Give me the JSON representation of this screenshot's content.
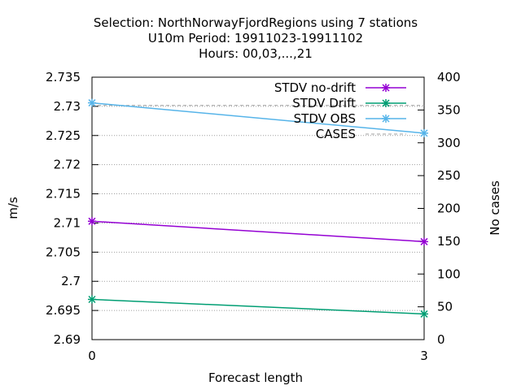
{
  "title_lines": [
    "Selection: NorthNorwayFjordRegions using     7 stations",
    "U10m   Period: 19911023-19911102",
    "Hours:  00,03,...,21"
  ],
  "colors": {
    "stdv_nodrift": "#9400d3",
    "stdv_drift": "#009e73",
    "stdv_obs": "#56b4e9",
    "cases": "#a0a0a0",
    "grid": "#a0a0a0"
  },
  "chart_data": {
    "type": "line",
    "xlabel": "Forecast length",
    "ylabel": "m/s",
    "y2label": "No cases",
    "x": [
      0,
      3
    ],
    "x_ticks": [
      "0",
      "3"
    ],
    "xlim": [
      0,
      3
    ],
    "ylim": [
      2.69,
      2.735
    ],
    "y_ticks": [
      "2.69",
      "2.695",
      "2.7",
      "2.705",
      "2.71",
      "2.715",
      "2.72",
      "2.725",
      "2.73",
      "2.735"
    ],
    "y2lim": [
      0,
      400
    ],
    "y2_ticks": [
      "0",
      "50",
      "100",
      "150",
      "200",
      "250",
      "300",
      "350",
      "400"
    ],
    "grid": true,
    "legend_position": "top-right",
    "series": [
      {
        "name": "STDV no-drift",
        "axis": "y1",
        "values": [
          2.7103,
          2.7068
        ],
        "color_key": "stdv_nodrift",
        "dash": false,
        "marker": true
      },
      {
        "name": "STDV Drift",
        "axis": "y1",
        "values": [
          2.6969,
          2.6944
        ],
        "color_key": "stdv_drift",
        "dash": false,
        "marker": true
      },
      {
        "name": "STDV OBS",
        "axis": "y1",
        "values": [
          2.7306,
          2.7254
        ],
        "color_key": "stdv_obs",
        "dash": false,
        "marker": true
      },
      {
        "name": "CASES",
        "axis": "y2",
        "values": [
          357,
          357
        ],
        "color_key": "cases",
        "dash": true,
        "marker": false
      }
    ]
  }
}
